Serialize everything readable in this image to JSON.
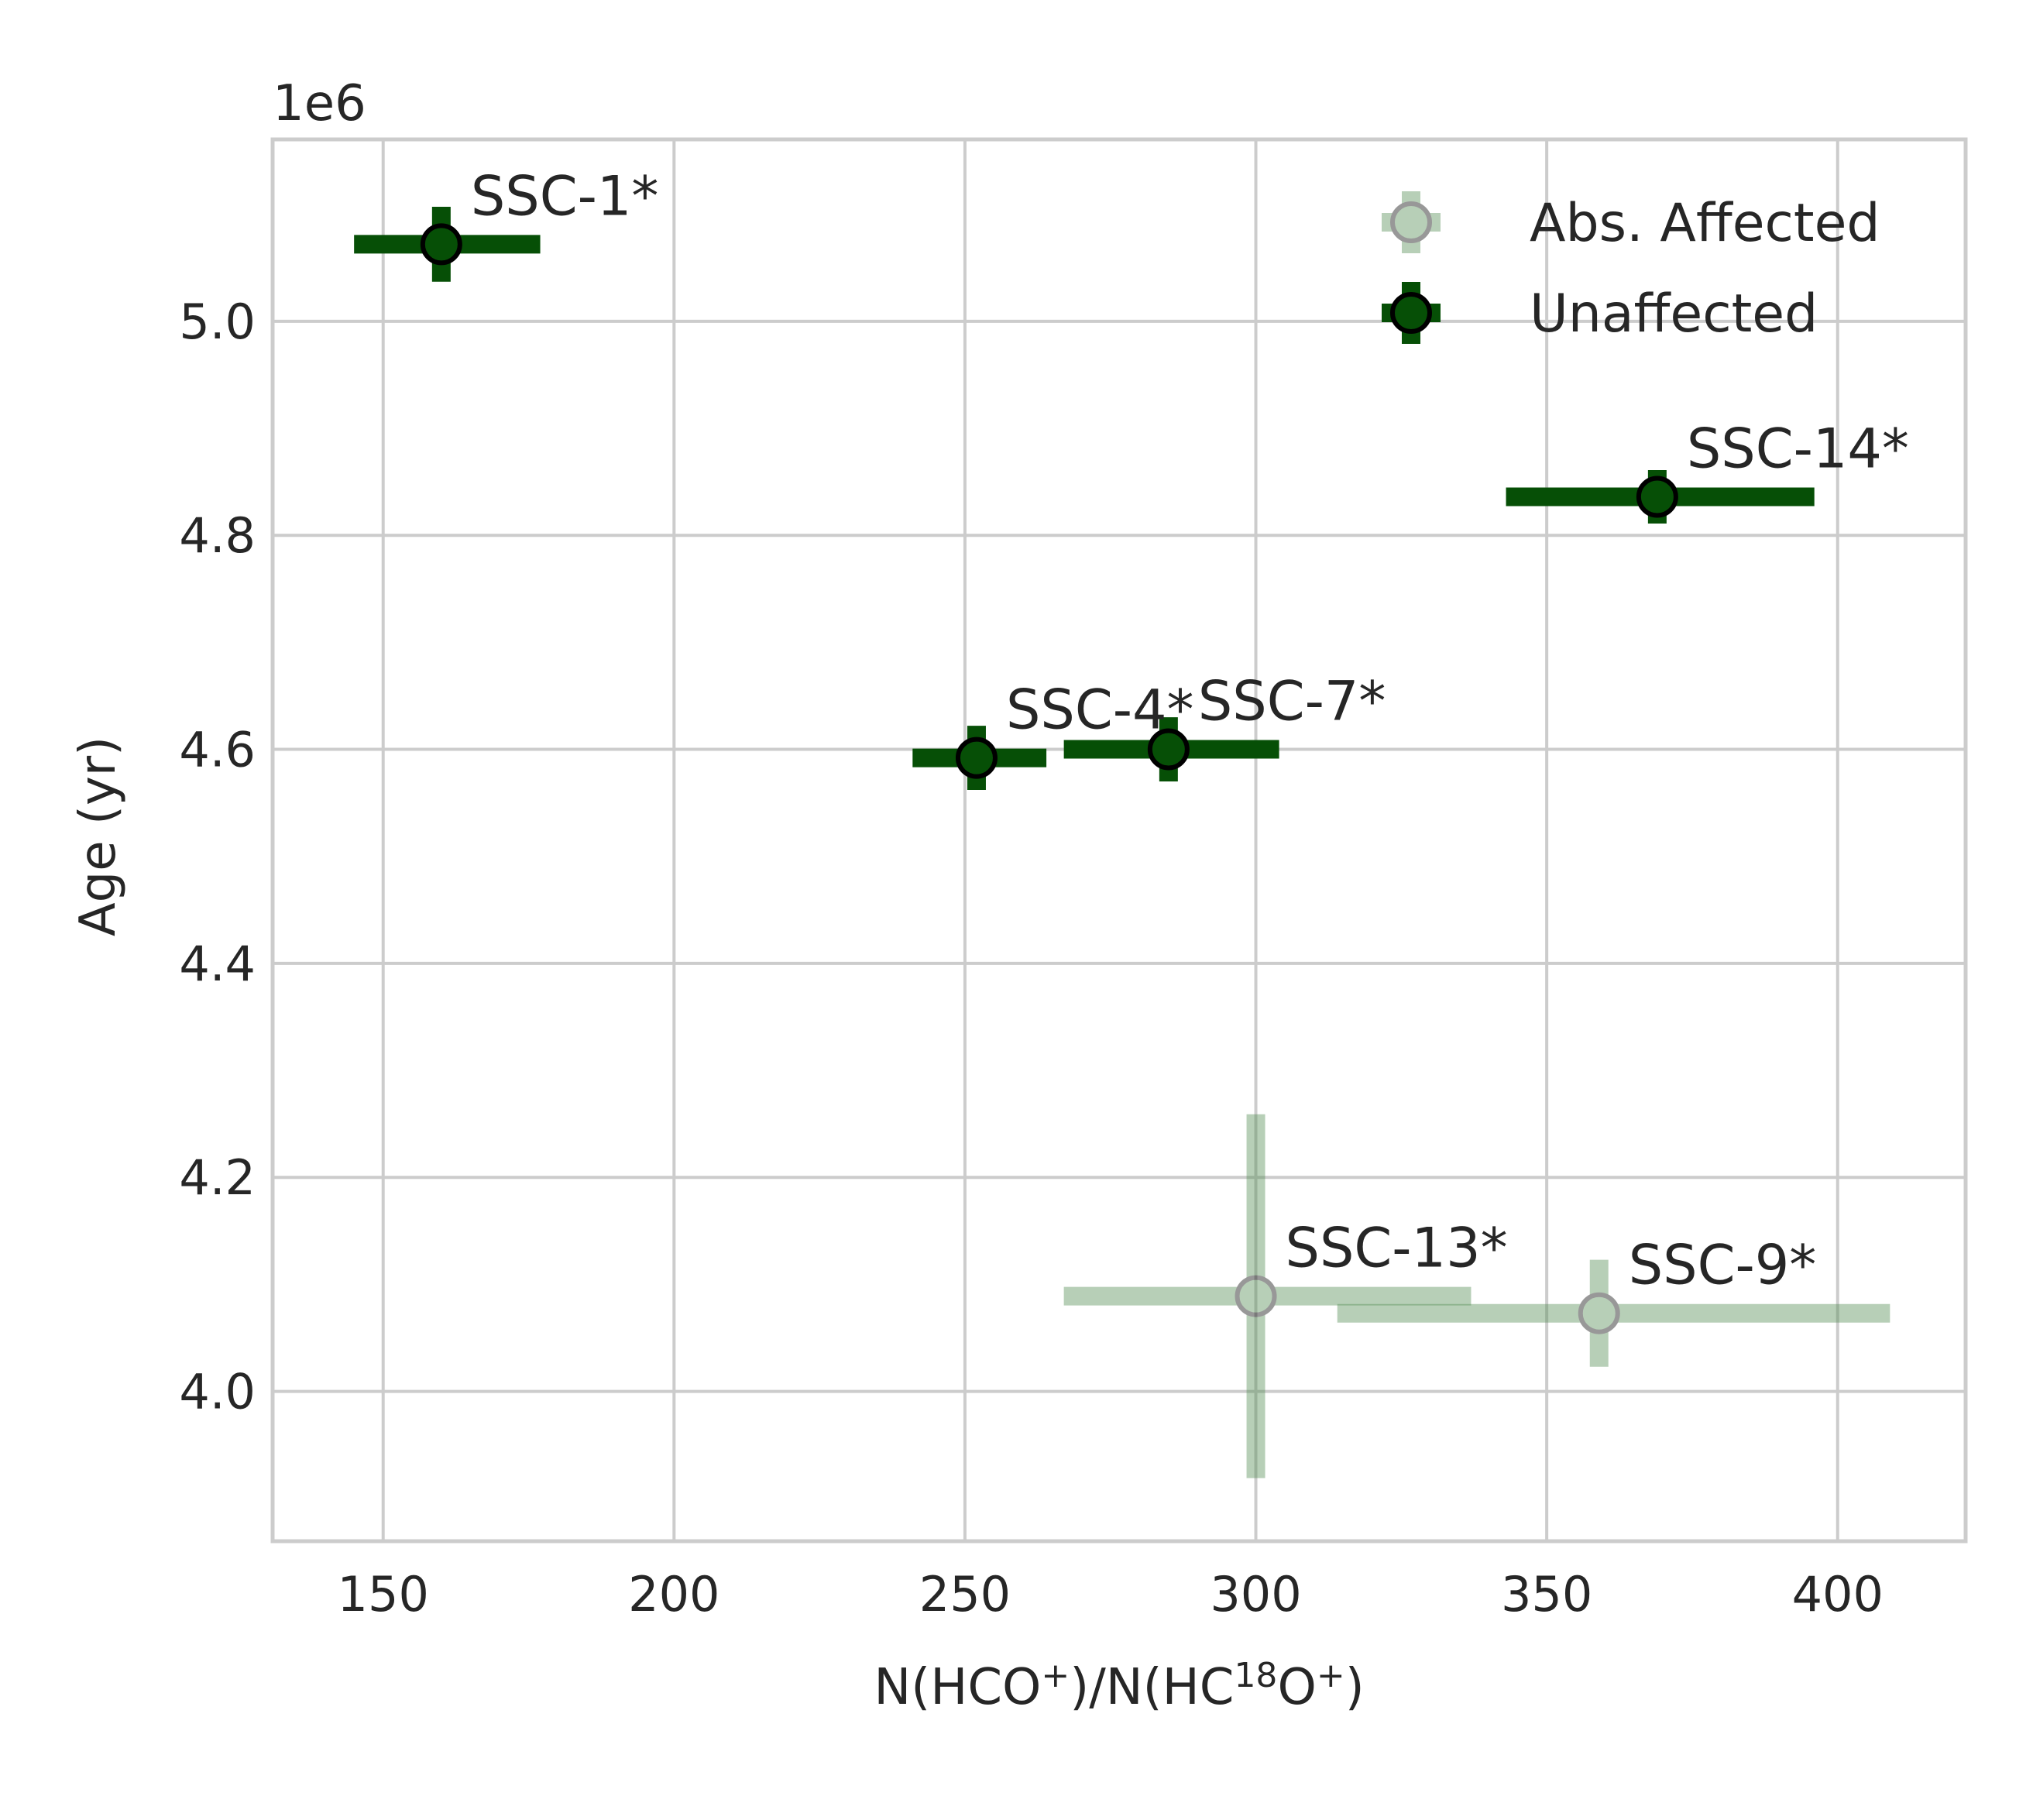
{
  "chart_data": {
    "type": "scatter",
    "title": "",
    "xlabel": {
      "prefix": "N(HCO",
      "sup1": "+",
      "mid": ")/N(HC",
      "sup2": "18",
      "mid2": "O",
      "sup3": "+",
      "suffix": ")"
    },
    "ylabel": "Age (yr)",
    "y_offset_label": "1e6",
    "xlim": [
      131,
      422
    ],
    "ylim": [
      3.86,
      5.17
    ],
    "xticks": [
      150,
      200,
      250,
      300,
      350,
      400
    ],
    "xtick_labels": [
      "150",
      "200",
      "250",
      "300",
      "350",
      "400"
    ],
    "yticks": [
      4.0,
      4.2,
      4.4,
      4.6,
      4.8,
      5.0
    ],
    "ytick_labels": [
      "4.0",
      "4.2",
      "4.4",
      "4.6",
      "4.8",
      "5.0"
    ],
    "grid": true,
    "legend_position": "top-right",
    "colors": {
      "unaffected": "#064f06",
      "affected": "#4e8a4e",
      "marker_edge": "#000000"
    },
    "series": [
      {
        "name": "Abs. Affected",
        "style": "faded",
        "points": [
          {
            "label": "SSC-13*",
            "x": 300,
            "y": 4.089,
            "xerr": [
              33,
              37
            ],
            "yerr": [
              0.17,
              0.17
            ]
          },
          {
            "label": "SSC-9*",
            "x": 359,
            "y": 4.073,
            "xerr": [
              45,
              50
            ],
            "yerr": [
              0.05,
              0.05
            ]
          }
        ]
      },
      {
        "name": "Unaffected",
        "style": "solid",
        "points": [
          {
            "label": "SSC-1*",
            "x": 160,
            "y": 5.072,
            "xerr": [
              15,
              17
            ],
            "yerr": [
              0.035,
              0.035
            ]
          },
          {
            "label": "SSC-4*",
            "x": 252,
            "y": 4.592,
            "xerr": [
              11,
              12
            ],
            "yerr": [
              0.03,
              0.03
            ]
          },
          {
            "label": "SSC-7*",
            "x": 285,
            "y": 4.6,
            "xerr": [
              18,
              19
            ],
            "yerr": [
              0.03,
              0.03
            ]
          },
          {
            "label": "SSC-14*",
            "x": 369,
            "y": 4.836,
            "xerr": [
              26,
              27
            ],
            "yerr": [
              0.025,
              0.025
            ]
          }
        ]
      }
    ]
  }
}
